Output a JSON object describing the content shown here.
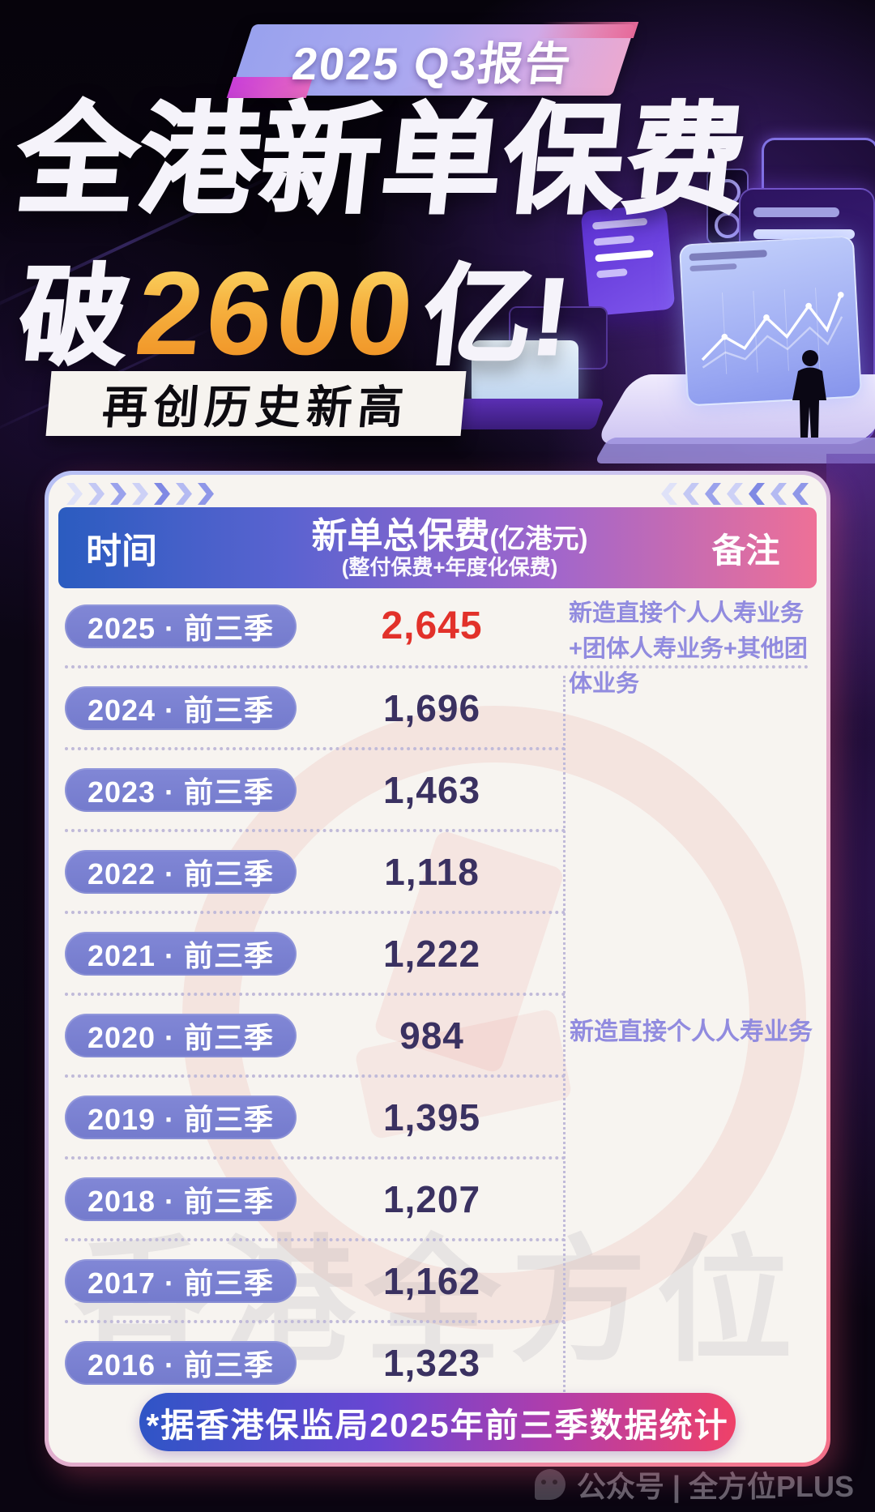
{
  "badge": {
    "label": "2025 Q3报告"
  },
  "headline": {
    "line1": "全港新单保费",
    "line2_prefix": "破",
    "line2_number": "2600",
    "line2_suffix": "亿!",
    "tagline": "再创历史新高"
  },
  "table": {
    "header": {
      "time": "时间",
      "premium_title": "新单总保费",
      "premium_unit": "(亿港元)",
      "premium_sub": "(整付保费+年度化保费)",
      "remark": "备注"
    },
    "rows": [
      {
        "period": "2025 · 前三季",
        "value": "2,645",
        "highlight": true
      },
      {
        "period": "2024 · 前三季",
        "value": "1,696",
        "highlight": false
      },
      {
        "period": "2023 · 前三季",
        "value": "1,463",
        "highlight": false
      },
      {
        "period": "2022 · 前三季",
        "value": "1,118",
        "highlight": false
      },
      {
        "period": "2021 · 前三季",
        "value": "1,222",
        "highlight": false
      },
      {
        "period": "2020 · 前三季",
        "value": "984",
        "highlight": false
      },
      {
        "period": "2019 · 前三季",
        "value": "1,395",
        "highlight": false
      },
      {
        "period": "2018 · 前三季",
        "value": "1,207",
        "highlight": false
      },
      {
        "period": "2017 · 前三季",
        "value": "1,162",
        "highlight": false
      },
      {
        "period": "2016 · 前三季",
        "value": "1,323",
        "highlight": false
      }
    ],
    "note_2025": "新造直接个人人寿业务+团体人寿业务+其他团体业务",
    "note_2016_2024": "新造直接个人人寿业务"
  },
  "footnote": "*据香港保监局2025年前三季数据统计",
  "watermark": {
    "band_text": "香港全方位",
    "bottom_text": "公众号 | 全方位PLUS"
  },
  "colors": {
    "accent_red": "#e2312a",
    "number_orange": "#f2992b",
    "pill_purple": "#7a81d2",
    "header_blue": "#2b5cc0",
    "header_pink": "#ee7097",
    "note_purple": "#918bdf"
  },
  "chart_data": {
    "type": "table",
    "title": "全港新单保费破2600亿! 再创历史新高 (2025 Q3报告)",
    "columns": [
      "时间",
      "新单总保费(亿港元) (整付保费+年度化保费)",
      "备注"
    ],
    "categories": [
      "2025·前三季",
      "2024·前三季",
      "2023·前三季",
      "2022·前三季",
      "2021·前三季",
      "2020·前三季",
      "2019·前三季",
      "2018·前三季",
      "2017·前三季",
      "2016·前三季"
    ],
    "values": [
      2645,
      1696,
      1463,
      1118,
      1222,
      984,
      1395,
      1207,
      1162,
      1323
    ],
    "unit": "亿港元",
    "remarks": {
      "2025": "新造直接个人人寿业务+团体人寿业务+其他团体业务",
      "2016-2024": "新造直接个人人寿业务"
    },
    "source": "*据香港保监局2025年前三季数据统计"
  }
}
